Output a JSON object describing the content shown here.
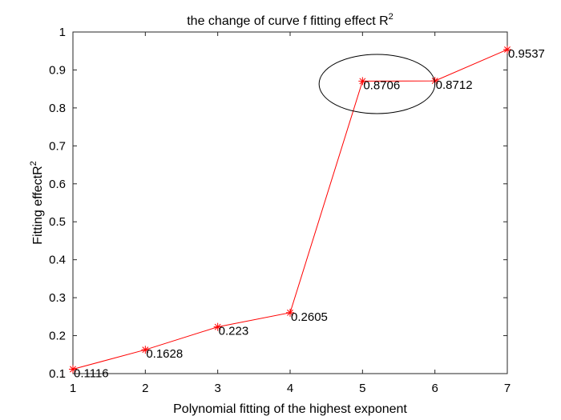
{
  "chart_data": {
    "type": "line",
    "title": "the change of curve f fitting effect R",
    "title_superscript": "2",
    "xlabel": "Polynomial fitting of the highest exponent",
    "ylabel": "Fitting effectR",
    "ylabel_superscript": "2",
    "xlim": [
      1,
      7
    ],
    "ylim": [
      0.1,
      1
    ],
    "xticks": [
      1,
      2,
      3,
      4,
      5,
      6,
      7
    ],
    "yticks": [
      0.1,
      0.2,
      0.3,
      0.4,
      0.5,
      0.6,
      0.7,
      0.8,
      0.9,
      1
    ],
    "grid": false,
    "line_color": "#ff0000",
    "marker": "asterisk",
    "series": [
      {
        "x": [
          1,
          2,
          3,
          4,
          5,
          6,
          7
        ],
        "values": [
          0.1116,
          0.1628,
          0.223,
          0.2605,
          0.8706,
          0.8712,
          0.9537
        ],
        "labels": [
          "0.1116",
          "0.1628",
          "0.223",
          "0.2605",
          "0.8706",
          "0.8712",
          "0.9537"
        ]
      }
    ],
    "annotations": [
      {
        "type": "ellipse",
        "center": [
          5.2,
          0.863
        ],
        "rx_data": 0.8,
        "ry_data": 0.078
      }
    ]
  }
}
